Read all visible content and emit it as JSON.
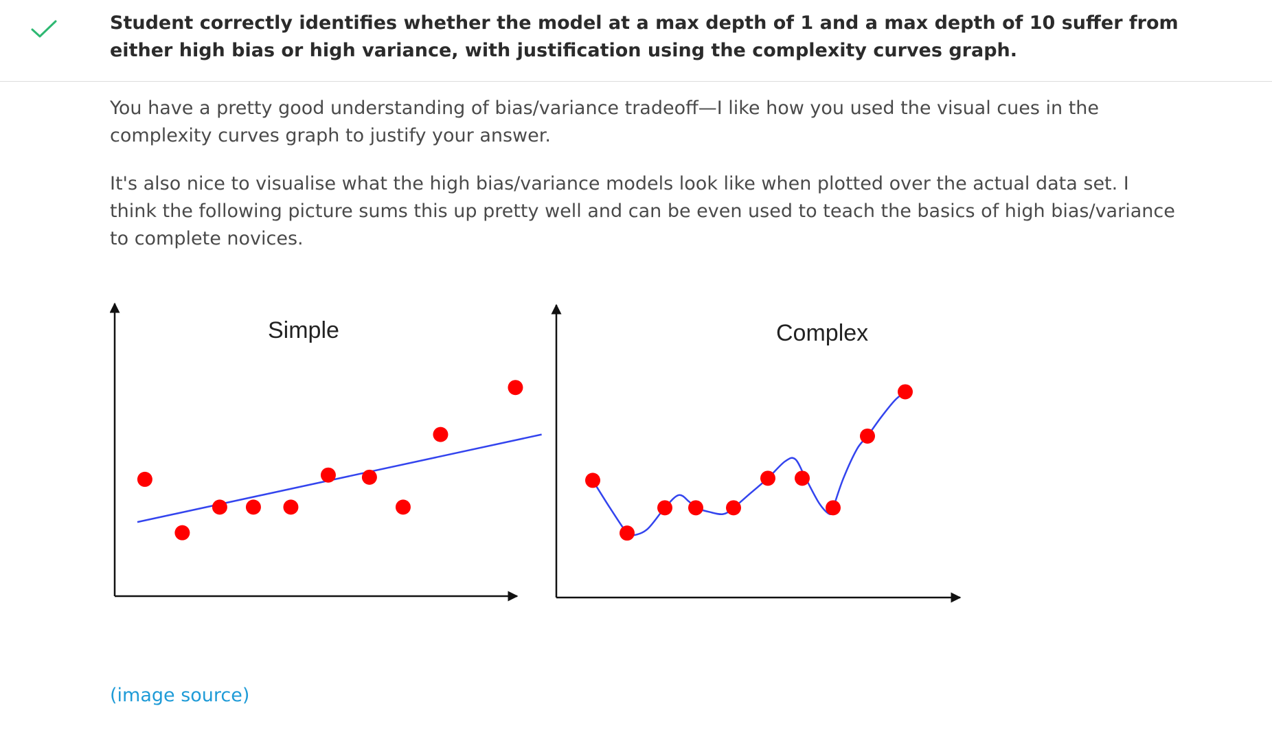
{
  "criterion": {
    "status_icon": "check-icon",
    "status_color": "#2eb872",
    "text": "Student correctly identifies whether the model at a max depth of 1 and a max depth of 10 suffer from either high bias or high variance, with justification using the complexity curves graph."
  },
  "feedback": {
    "paragraph_1": "You have a pretty good understanding of bias/variance tradeoff—I like how you used the visual cues in the complexity curves graph to justify your answer.",
    "paragraph_2": "It's also nice to visualise what the high bias/variance models look like when plotted over the actual data set. I think the following picture sums this up pretty well and can be even used to teach the basics of high bias/variance to complete novices."
  },
  "image_source_link": "(image source)",
  "colors": {
    "point": "#ff0000",
    "fit_line": "#3344ee",
    "axis": "#111111",
    "link": "#1f9bd7"
  },
  "chart_data": [
    {
      "type": "scatter",
      "title": "Simple",
      "xlabel": "",
      "ylabel": "",
      "xlim": [
        0,
        100
      ],
      "ylim": [
        0,
        100
      ],
      "points": [
        {
          "x": 2,
          "y": 37
        },
        {
          "x": 12,
          "y": 12
        },
        {
          "x": 22,
          "y": 24
        },
        {
          "x": 31,
          "y": 24
        },
        {
          "x": 41,
          "y": 24
        },
        {
          "x": 51,
          "y": 39
        },
        {
          "x": 62,
          "y": 38
        },
        {
          "x": 71,
          "y": 24
        },
        {
          "x": 81,
          "y": 58
        },
        {
          "x": 101,
          "y": 80
        }
      ],
      "fit": {
        "type": "linear",
        "x": [
          0,
          108
        ],
        "y": [
          17,
          58
        ]
      }
    },
    {
      "type": "scatter",
      "title": "Complex",
      "xlabel": "",
      "ylabel": "",
      "xlim": [
        0,
        100
      ],
      "ylim": [
        0,
        100
      ],
      "points": [
        {
          "x": 1,
          "y": 37
        },
        {
          "x": 11,
          "y": 12
        },
        {
          "x": 22,
          "y": 24
        },
        {
          "x": 31,
          "y": 24
        },
        {
          "x": 42,
          "y": 24
        },
        {
          "x": 52,
          "y": 38
        },
        {
          "x": 62,
          "y": 38
        },
        {
          "x": 71,
          "y": 24
        },
        {
          "x": 81,
          "y": 58
        },
        {
          "x": 92,
          "y": 79
        }
      ],
      "fit": {
        "type": "curve",
        "x": [
          1,
          6,
          11,
          13,
          17,
          22,
          26,
          29,
          31,
          35,
          39,
          42,
          47,
          52,
          57,
          60,
          63,
          67,
          70,
          71,
          74,
          78,
          81,
          85,
          89,
          92
        ],
        "y": [
          37,
          24,
          12,
          11,
          14,
          24,
          30,
          27,
          24,
          22,
          21,
          24,
          31,
          38,
          46,
          47,
          38,
          26,
          21,
          24,
          38,
          52,
          58,
          67,
          75,
          79
        ]
      }
    }
  ]
}
